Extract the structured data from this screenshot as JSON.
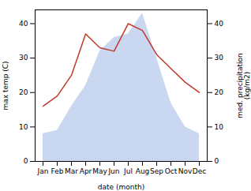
{
  "chart_data": {
    "type": "line",
    "categories": [
      "Jan",
      "Feb",
      "Mar",
      "Apr",
      "May",
      "Jun",
      "Jul",
      "Aug",
      "Sep",
      "Oct",
      "Nov",
      "Dec"
    ],
    "series": [
      {
        "type": "area",
        "color": "#b8c9ec",
        "axis": "y2",
        "values": [
          8,
          9,
          16,
          22,
          32,
          36,
          37,
          43,
          30,
          17,
          10,
          8
        ]
      },
      {
        "type": "line",
        "color": "#c0392b",
        "values": [
          16,
          19,
          25,
          37,
          33,
          32,
          40,
          38,
          31,
          27,
          23,
          20
        ]
      }
    ],
    "xlabel": "date (month)",
    "ylabel": "max temp (C)",
    "y2label": "med. precipitation\n(kg/m2)",
    "ylim": [
      0,
      44
    ],
    "yticks": [
      0,
      10,
      20,
      30,
      40
    ],
    "y2lim": [
      0,
      44
    ],
    "y2ticks": [
      0,
      10,
      20,
      30,
      40
    ]
  }
}
